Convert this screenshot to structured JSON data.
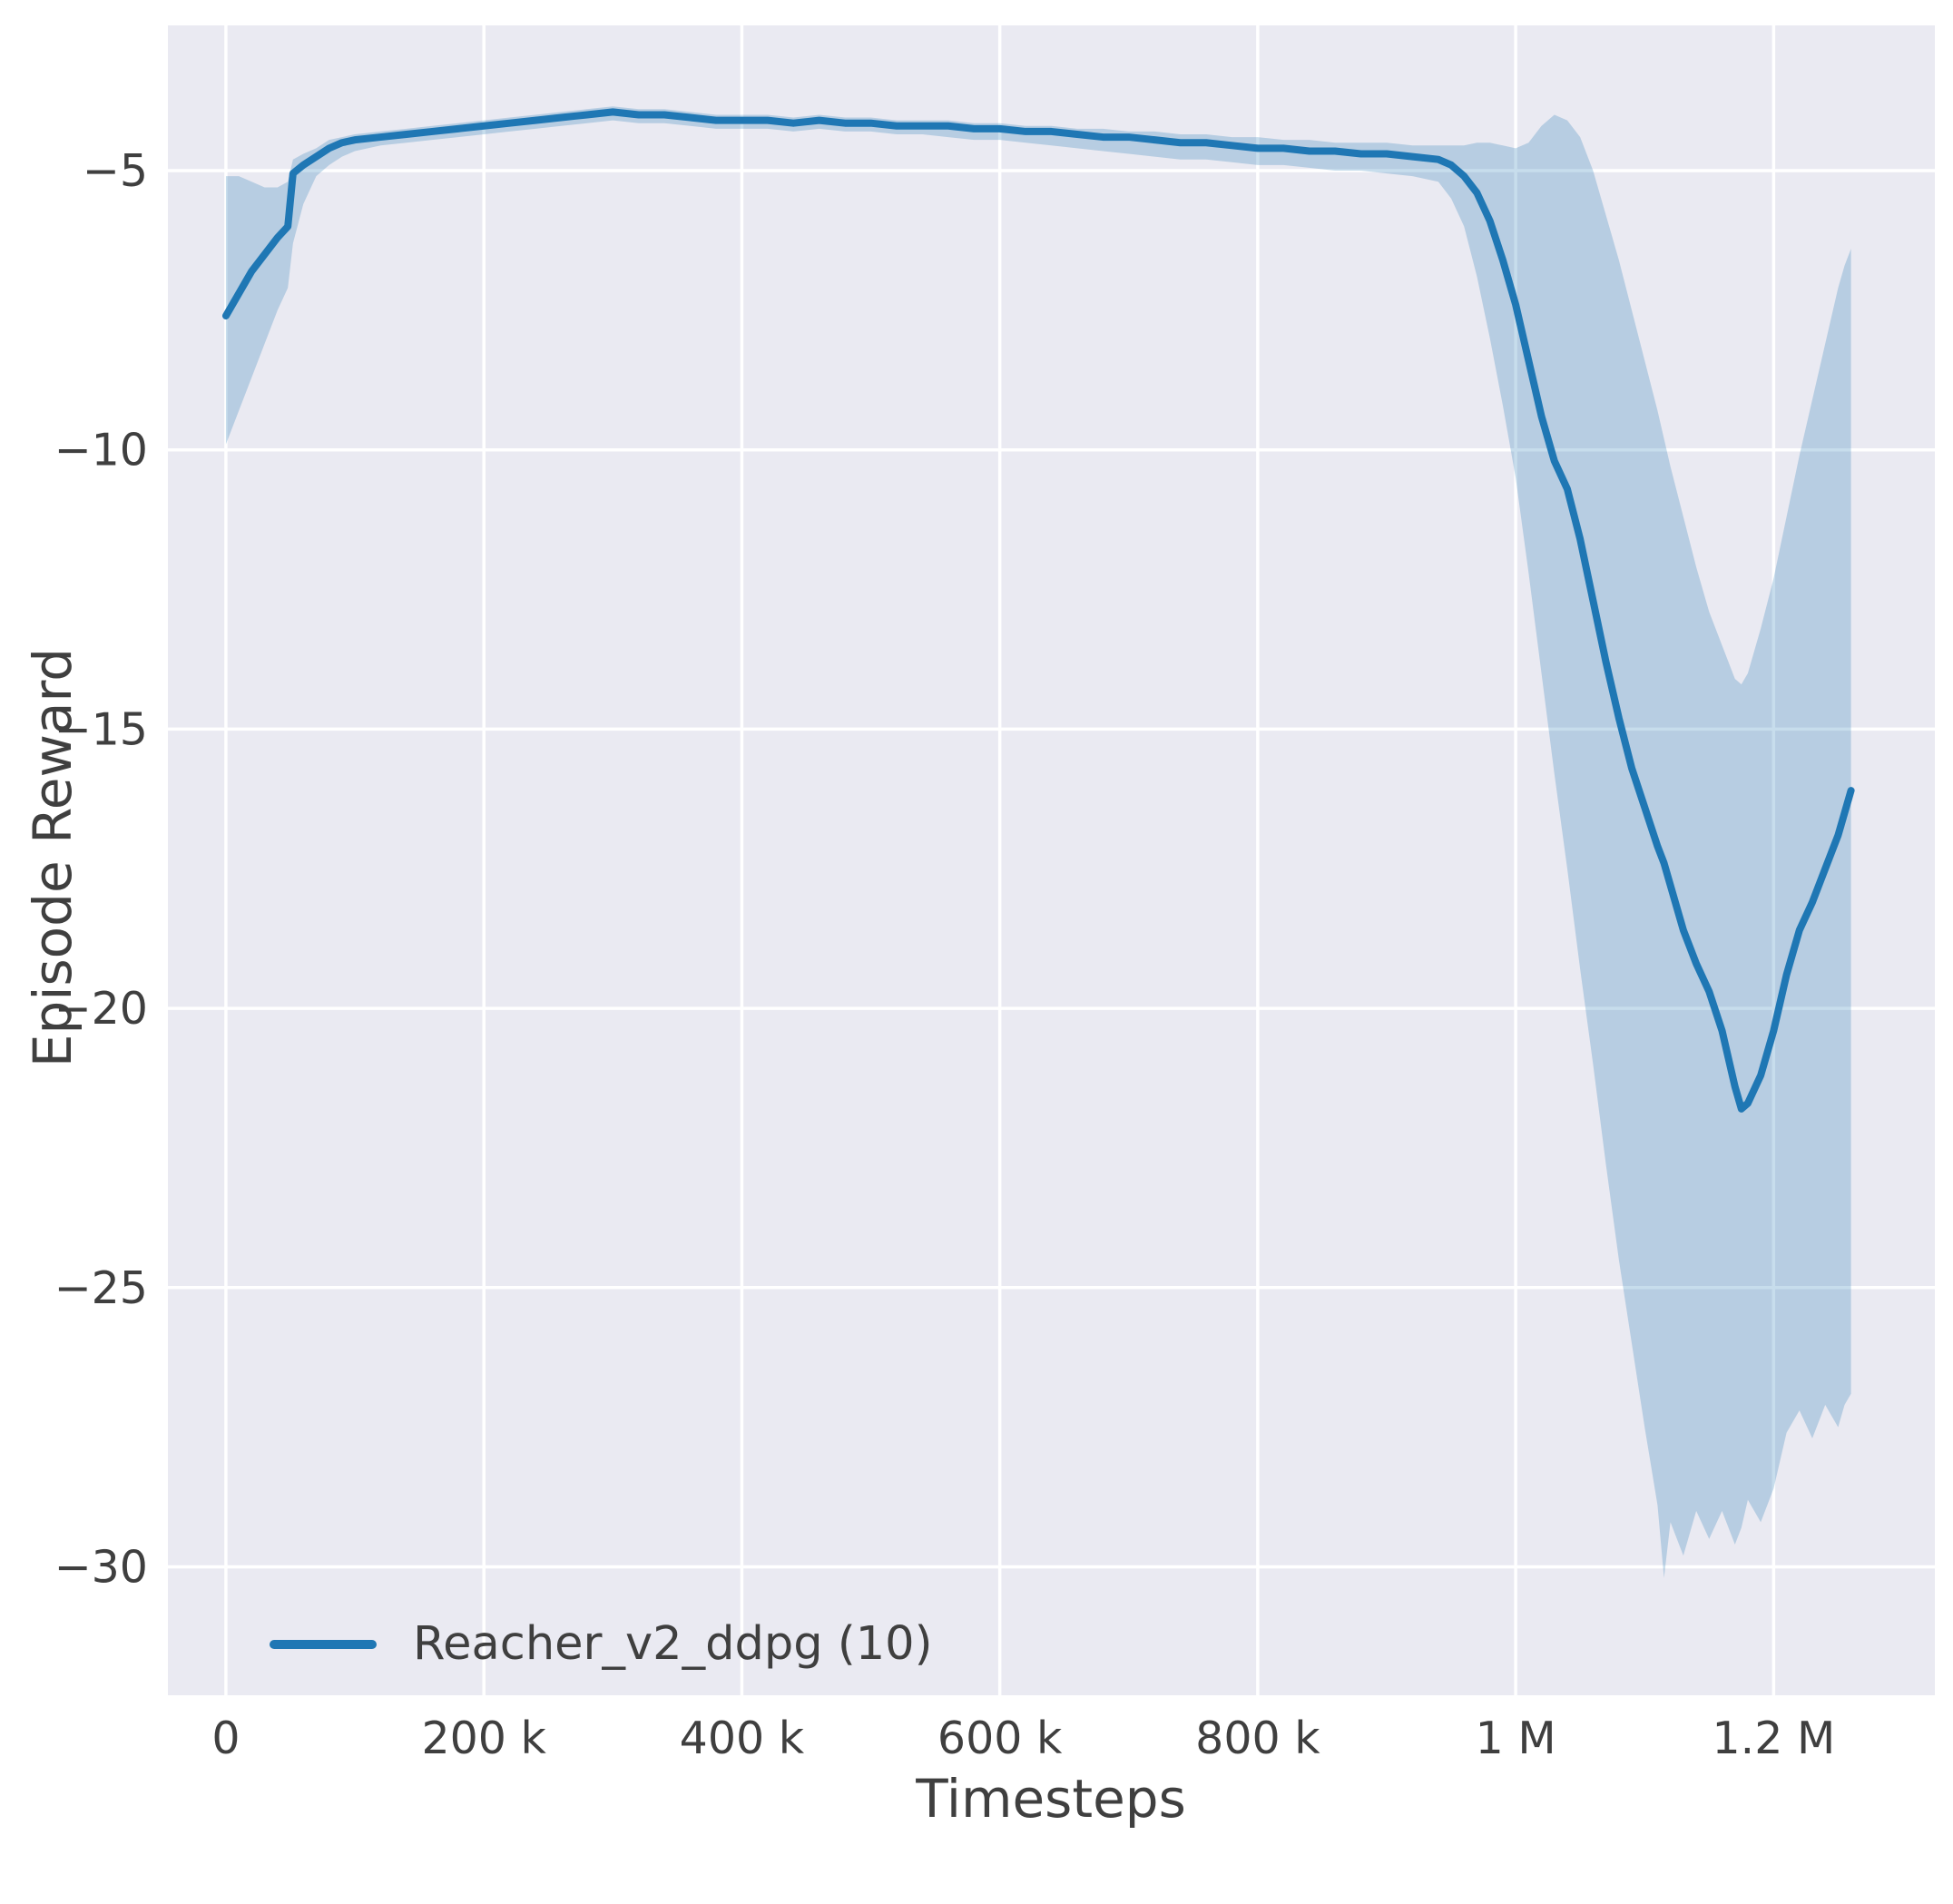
{
  "figure": {
    "xlabel": "Timesteps",
    "ylabel": "Episode Reward"
  },
  "chart_data": {
    "type": "line",
    "title": "",
    "xlabel": "Timesteps",
    "ylabel": "Episode Reward",
    "x_unit": "timesteps, values stored in thousands",
    "grid": true,
    "legend_position": "lower left",
    "xlim": [
      -45,
      1325
    ],
    "ylim": [
      -32.3,
      -2.4
    ],
    "xticks": [
      {
        "v": 0,
        "label": "0"
      },
      {
        "v": 200,
        "label": "200 k"
      },
      {
        "v": 400,
        "label": "400 k"
      },
      {
        "v": 600,
        "label": "600 k"
      },
      {
        "v": 800,
        "label": "800 k"
      },
      {
        "v": 1000,
        "label": "1 M"
      },
      {
        "v": 1200,
        "label": "1.2 M"
      }
    ],
    "yticks": [
      {
        "v": -5,
        "label": "−5"
      },
      {
        "v": -10,
        "label": "−10"
      },
      {
        "v": -15,
        "label": "−15"
      },
      {
        "v": -20,
        "label": "−20"
      },
      {
        "v": -25,
        "label": "−25"
      },
      {
        "v": -30,
        "label": "−30"
      }
    ],
    "colors": {
      "line": "#1f77b4",
      "band": "#1f77b4",
      "band_opacity": 0.25,
      "plot_bg": "#eaeaf2",
      "grid": "#ffffff",
      "text": "#3f3f3f",
      "figure_bg": "#ffffff"
    },
    "series": [
      {
        "name": "Reacher_v2_ddpg (10)",
        "x": [
          0,
          10,
          20,
          30,
          40,
          48,
          52,
          60,
          70,
          80,
          90,
          100,
          120,
          140,
          160,
          180,
          200,
          220,
          240,
          260,
          280,
          300,
          320,
          340,
          360,
          380,
          400,
          420,
          440,
          460,
          480,
          500,
          520,
          540,
          560,
          580,
          600,
          620,
          640,
          660,
          680,
          700,
          720,
          740,
          760,
          780,
          800,
          820,
          840,
          860,
          880,
          900,
          920,
          940,
          950,
          960,
          970,
          980,
          990,
          1000,
          1010,
          1020,
          1030,
          1040,
          1050,
          1060,
          1070,
          1080,
          1090,
          1100,
          1110,
          1115,
          1120,
          1130,
          1140,
          1150,
          1160,
          1170,
          1175,
          1180,
          1190,
          1200,
          1210,
          1220,
          1230,
          1240,
          1250,
          1255,
          1260
        ],
        "mean": [
          -7.6,
          -7.2,
          -6.8,
          -6.5,
          -6.2,
          -6.0,
          -5.05,
          -4.9,
          -4.75,
          -4.6,
          -4.5,
          -4.45,
          -4.4,
          -4.35,
          -4.3,
          -4.25,
          -4.2,
          -4.15,
          -4.1,
          -4.05,
          -4.0,
          -3.95,
          -4.0,
          -4.0,
          -4.05,
          -4.1,
          -4.1,
          -4.1,
          -4.15,
          -4.1,
          -4.15,
          -4.15,
          -4.2,
          -4.2,
          -4.2,
          -4.25,
          -4.25,
          -4.3,
          -4.3,
          -4.35,
          -4.4,
          -4.4,
          -4.45,
          -4.5,
          -4.5,
          -4.55,
          -4.6,
          -4.6,
          -4.65,
          -4.65,
          -4.7,
          -4.7,
          -4.75,
          -4.8,
          -4.9,
          -5.1,
          -5.4,
          -5.9,
          -6.6,
          -7.4,
          -8.4,
          -9.4,
          -10.2,
          -10.7,
          -11.6,
          -12.7,
          -13.8,
          -14.8,
          -15.7,
          -16.4,
          -17.1,
          -17.4,
          -17.8,
          -18.6,
          -19.2,
          -19.7,
          -20.4,
          -21.4,
          -21.8,
          -21.7,
          -21.2,
          -20.4,
          -19.4,
          -18.6,
          -18.1,
          -17.5,
          -16.9,
          -16.5,
          -16.1
        ],
        "band_lower": [
          -9.9,
          -9.3,
          -8.7,
          -8.1,
          -7.5,
          -7.1,
          -6.3,
          -5.6,
          -5.1,
          -4.9,
          -4.75,
          -4.65,
          -4.55,
          -4.5,
          -4.45,
          -4.4,
          -4.35,
          -4.3,
          -4.25,
          -4.2,
          -4.15,
          -4.1,
          -4.15,
          -4.15,
          -4.2,
          -4.25,
          -4.25,
          -4.25,
          -4.3,
          -4.25,
          -4.3,
          -4.3,
          -4.35,
          -4.35,
          -4.4,
          -4.45,
          -4.45,
          -4.5,
          -4.55,
          -4.6,
          -4.65,
          -4.7,
          -4.75,
          -4.8,
          -4.8,
          -4.85,
          -4.9,
          -4.9,
          -4.95,
          -5.0,
          -5.0,
          -5.05,
          -5.1,
          -5.2,
          -5.5,
          -6.0,
          -6.9,
          -8.0,
          -9.2,
          -10.5,
          -12.2,
          -14.0,
          -15.8,
          -17.5,
          -19.3,
          -21.0,
          -22.8,
          -24.5,
          -26.0,
          -27.5,
          -28.9,
          -30.2,
          -29.2,
          -29.8,
          -29.0,
          -29.5,
          -29.0,
          -29.6,
          -29.3,
          -28.8,
          -29.2,
          -28.6,
          -27.6,
          -27.2,
          -27.7,
          -27.1,
          -27.5,
          -27.1,
          -26.9
        ],
        "band_upper": [
          -5.1,
          -5.1,
          -5.2,
          -5.3,
          -5.3,
          -5.2,
          -4.8,
          -4.7,
          -4.6,
          -4.45,
          -4.4,
          -4.35,
          -4.3,
          -4.25,
          -4.2,
          -4.15,
          -4.1,
          -4.05,
          -4.0,
          -3.95,
          -3.9,
          -3.85,
          -3.9,
          -3.9,
          -3.95,
          -4.0,
          -4.0,
          -4.0,
          -4.05,
          -4.0,
          -4.05,
          -4.05,
          -4.1,
          -4.1,
          -4.1,
          -4.15,
          -4.15,
          -4.2,
          -4.2,
          -4.25,
          -4.25,
          -4.3,
          -4.3,
          -4.35,
          -4.35,
          -4.4,
          -4.4,
          -4.45,
          -4.45,
          -4.5,
          -4.5,
          -4.5,
          -4.55,
          -4.55,
          -4.55,
          -4.55,
          -4.5,
          -4.5,
          -4.55,
          -4.6,
          -4.5,
          -4.2,
          -4.0,
          -4.1,
          -4.4,
          -5.0,
          -5.8,
          -6.6,
          -7.5,
          -8.4,
          -9.3,
          -9.8,
          -10.3,
          -11.2,
          -12.1,
          -12.9,
          -13.5,
          -14.1,
          -14.2,
          -14.0,
          -13.2,
          -12.3,
          -11.2,
          -10.1,
          -9.1,
          -8.1,
          -7.1,
          -6.7,
          -6.4
        ]
      }
    ]
  }
}
